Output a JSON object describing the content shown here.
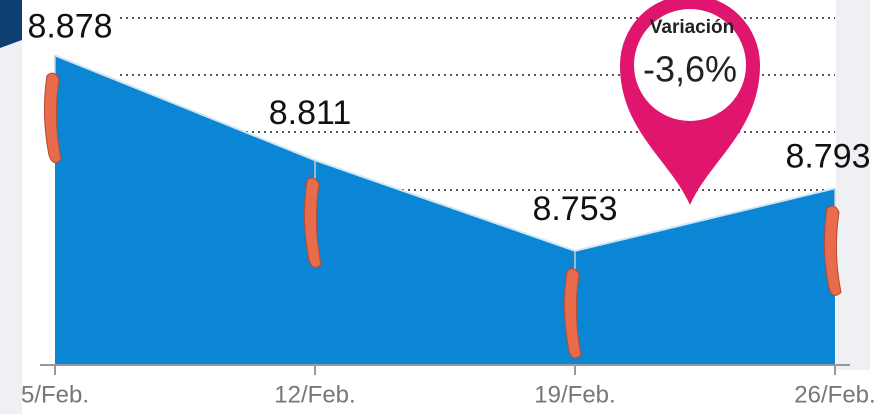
{
  "chart_data": {
    "type": "area",
    "categories": [
      "5/Feb.",
      "12/Feb.",
      "19/Feb.",
      "26/Feb."
    ],
    "values": [
      8.878,
      8.811,
      8.753,
      8.793
    ],
    "color": "#0a86d4",
    "ylim": [
      8.68,
      8.9
    ],
    "annotation": {
      "title": "Variación",
      "text": "-3,6%"
    }
  }
}
